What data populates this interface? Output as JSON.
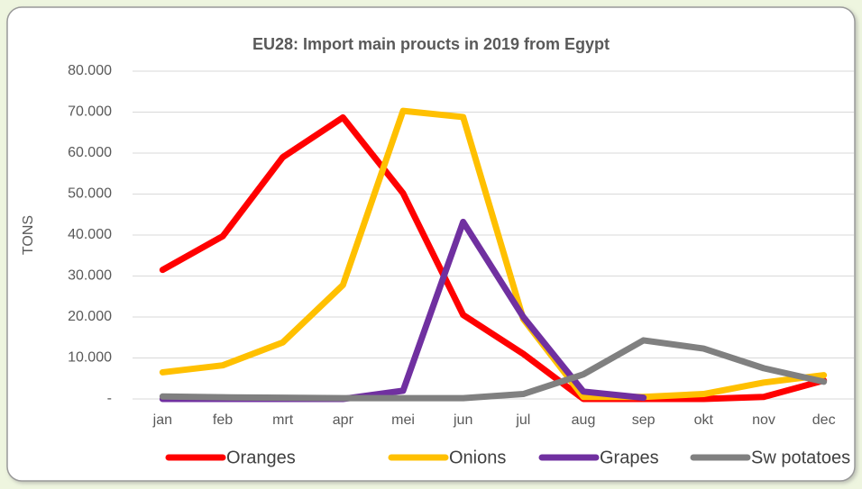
{
  "chart_data": {
    "type": "line",
    "title": "EU28: Import main proucts in 2019 from Egypt",
    "y_label": "TONS",
    "categories": [
      "jan",
      "feb",
      "mrt",
      "apr",
      "mei",
      "jun",
      "jul",
      "aug",
      "sep",
      "okt",
      "nov",
      "dec"
    ],
    "series": [
      {
        "name": "Oranges",
        "color": "#ff0000",
        "values": [
          31500,
          39700,
          59000,
          68700,
          50200,
          20500,
          11000,
          0,
          0,
          0,
          500,
          4500
        ]
      },
      {
        "name": "Onions",
        "color": "#ffc000",
        "values": [
          6500,
          8200,
          13800,
          27800,
          70300,
          68800,
          19500,
          500,
          500,
          1200,
          4000,
          5800
        ]
      },
      {
        "name": "Grapes",
        "color": "#7030a0",
        "values": [
          0,
          0,
          0,
          0,
          2000,
          43200,
          20000,
          1800,
          300,
          null,
          null,
          null
        ]
      },
      {
        "name": "Sw potatoes",
        "color": "#808080",
        "values": [
          600,
          400,
          300,
          200,
          200,
          200,
          1200,
          6000,
          14300,
          12300,
          7500,
          4200
        ]
      }
    ],
    "ylim": [
      0,
      80000
    ],
    "yticks": [
      {
        "value": 0,
        "label": "-"
      },
      {
        "value": 10000,
        "label": "10.000"
      },
      {
        "value": 20000,
        "label": "20.000"
      },
      {
        "value": 30000,
        "label": "30.000"
      },
      {
        "value": 40000,
        "label": "40.000"
      },
      {
        "value": 50000,
        "label": "50.000"
      },
      {
        "value": 60000,
        "label": "60.000"
      },
      {
        "value": 70000,
        "label": "70.000"
      },
      {
        "value": 80000,
        "label": "80.000"
      }
    ],
    "grid": true,
    "legend": "bottom"
  }
}
